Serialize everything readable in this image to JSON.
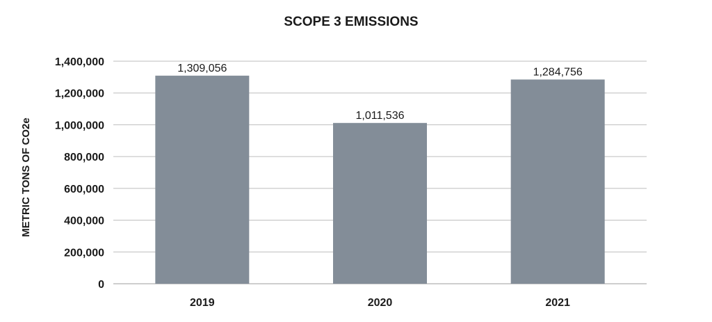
{
  "chart_data": {
    "type": "bar",
    "title": "SCOPE 3 EMISSIONS",
    "xlabel": "",
    "ylabel": "METRIC TONS OF CO2e",
    "categories": [
      "2019",
      "2020",
      "2021"
    ],
    "values": [
      1309056,
      1011536,
      1284756
    ],
    "value_labels": [
      "1,309,056",
      "1,011,536",
      "1,284,756"
    ],
    "ylim": [
      0,
      1400000
    ],
    "yticks": [
      0,
      200000,
      400000,
      600000,
      800000,
      1000000,
      1200000,
      1400000
    ],
    "ytick_labels": [
      "0",
      "200,000",
      "400,000",
      "600,000",
      "800,000",
      "1,000,000",
      "1,200,000",
      "1,400,000"
    ],
    "grid": true,
    "legend": "none",
    "bar_color": "#838d98"
  }
}
